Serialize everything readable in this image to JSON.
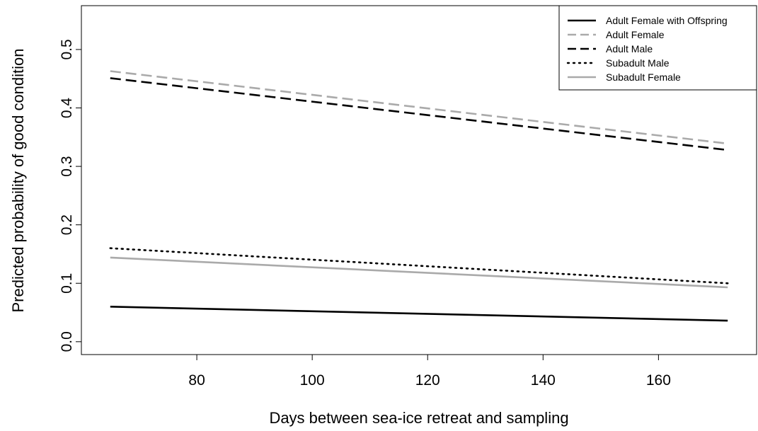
{
  "chart_data": {
    "type": "line",
    "title": "",
    "xlabel": "Days between sea-ice retreat and sampling",
    "ylabel": "Predicted probability of good condition",
    "xlim": [
      60,
      177
    ],
    "ylim": [
      -0.022,
      0.575
    ],
    "xticks": [
      80,
      100,
      120,
      140,
      160
    ],
    "yticks": [
      0.0,
      0.1,
      0.2,
      0.3,
      0.4,
      0.5
    ],
    "xtick_labels": [
      "80",
      "100",
      "120",
      "140",
      "160"
    ],
    "ytick_labels": [
      "0.0",
      "0.1",
      "0.2",
      "0.3",
      "0.4",
      "0.5"
    ],
    "grid": false,
    "legend_position": "top-right",
    "series": [
      {
        "name": "Adult Female with Offspring",
        "color": "#000000",
        "dash": "solid",
        "x": [
          65,
          172
        ],
        "y": [
          0.06,
          0.036
        ]
      },
      {
        "name": "Adult Female",
        "color": "#aaaaaa",
        "dash": "dashed",
        "x": [
          65,
          172
        ],
        "y": [
          0.463,
          0.339
        ]
      },
      {
        "name": "Adult Male",
        "color": "#000000",
        "dash": "dashed",
        "x": [
          65,
          172
        ],
        "y": [
          0.451,
          0.328
        ]
      },
      {
        "name": "Subadult Male",
        "color": "#000000",
        "dash": "dotted",
        "x": [
          65,
          172
        ],
        "y": [
          0.16,
          0.1
        ]
      },
      {
        "name": "Subadult Female",
        "color": "#aaaaaa",
        "dash": "solid",
        "x": [
          65,
          172
        ],
        "y": [
          0.144,
          0.093
        ]
      }
    ]
  }
}
